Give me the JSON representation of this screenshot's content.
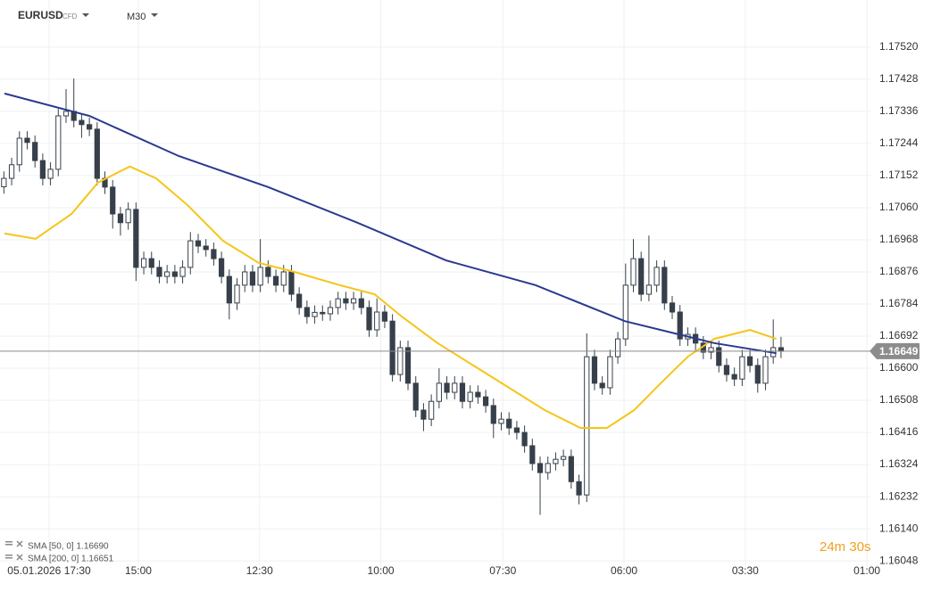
{
  "chart_data": {
    "type": "candlestick",
    "symbol": "EURUSD",
    "instrument": "CFD",
    "interval": "M30",
    "timer": "24m 30s",
    "xlim": [
      -0.5,
      111.5
    ],
    "xticks": [
      {
        "value": 5.82,
        "label": "05.01.2026 17:30"
      },
      {
        "value": 17.3,
        "label": "15:00"
      },
      {
        "value": 32.9,
        "label": "12:30"
      },
      {
        "value": 48.5,
        "label": "10:00"
      },
      {
        "value": 64.2,
        "label": "07:30"
      },
      {
        "value": 79.8,
        "label": "06:00"
      },
      {
        "value": 95.4,
        "label": "03:30"
      },
      {
        "value": 111.05,
        "label": "01:00"
      }
    ],
    "ylim": [
      1.16033,
      1.17655
    ],
    "yticks": [
      {
        "value": 1.1752,
        "label": "1.17520"
      },
      1.17428,
      1.17336,
      1.17244,
      1.17152,
      {
        "value": 1.1706,
        "label": "1.17060"
      },
      1.16968,
      1.16876,
      1.16784,
      1.16692,
      {
        "value": 1.166,
        "label": "1.16600"
      },
      1.16508,
      1.16416,
      1.16324,
      1.16232,
      {
        "value": 1.1614,
        "label": "1.16140"
      },
      1.16048
    ],
    "grid": true,
    "up_color": "#ffffff",
    "down_color": "#37404a",
    "wick_color": "#37404a",
    "price_line_color": "#8a8a8a",
    "open": [
      1.1712,
      1.17144,
      1.17183,
      1.17259,
      1.17247,
      1.17195,
      1.17144,
      1.1717,
      1.17323,
      1.17336,
      1.1731,
      1.17298,
      1.17285,
      1.17144,
      1.17119,
      1.17042,
      1.17017,
      1.17055,
      1.16889,
      1.16914,
      1.16889,
      1.16863,
      1.16876,
      1.16863,
      1.16889,
      1.16965,
      1.1695,
      1.1694,
      1.16914,
      1.16863,
      1.16787,
      1.16838,
      1.16876,
      1.16838,
      1.16889,
      1.16863,
      1.16838,
      1.16876,
      1.16812,
      1.16774,
      1.16748,
      1.1676,
      1.16756,
      1.16774,
      1.16799,
      1.16787,
      1.16799,
      1.16774,
      1.1671,
      1.16761,
      1.16735,
      1.16582,
      1.16659,
      1.16557,
      1.1648,
      1.16454,
      1.16505,
      1.16557,
      1.16531,
      1.16557,
      1.16505,
      1.16531,
      1.16518,
      1.16493,
      1.16442,
      1.16454,
      1.16429,
      1.16416,
      1.16378,
      1.16327,
      1.16301,
      1.16327,
      1.16339,
      1.16347,
      1.16275,
      1.16237,
      1.16633,
      1.16557,
      1.16544,
      1.16633,
      1.16684,
      1.16838,
      1.16914,
      1.16812,
      1.16838,
      1.16889,
      1.16787,
      1.16761,
      1.16684,
      1.16697,
      1.16672,
      1.16646,
      1.16659,
      1.16608,
      1.16582,
      1.16569,
      1.16633,
      1.16608,
      1.16557,
      1.16633,
      1.16659
    ],
    "high": [
      1.17164,
      1.17203,
      1.17279,
      1.17279,
      1.17267,
      1.17215,
      1.1719,
      1.17343,
      1.174,
      1.1743,
      1.1733,
      1.17318,
      1.17305,
      1.17164,
      1.17139,
      1.17062,
      1.17075,
      1.17075,
      1.16934,
      1.16934,
      1.16909,
      1.16896,
      1.16896,
      1.16909,
      1.1699,
      1.16985,
      1.1697,
      1.1696,
      1.16934,
      1.16883,
      1.16858,
      1.16896,
      1.16896,
      1.1697,
      1.16909,
      1.16883,
      1.16896,
      1.16896,
      1.16832,
      1.16794,
      1.1678,
      1.1678,
      1.16794,
      1.16819,
      1.16819,
      1.16819,
      1.16819,
      1.16794,
      1.168,
      1.16781,
      1.16755,
      1.16679,
      1.16679,
      1.16577,
      1.165,
      1.16525,
      1.166,
      1.16577,
      1.16577,
      1.16577,
      1.16551,
      1.16551,
      1.16538,
      1.16513,
      1.16474,
      1.16474,
      1.16449,
      1.16436,
      1.16398,
      1.16347,
      1.16347,
      1.16359,
      1.16367,
      1.16367,
      1.16295,
      1.167,
      1.16653,
      1.16577,
      1.16653,
      1.16704,
      1.169,
      1.1697,
      1.16934,
      1.1698,
      1.16909,
      1.16909,
      1.16807,
      1.16781,
      1.16717,
      1.16717,
      1.16692,
      1.16679,
      1.16679,
      1.16628,
      1.16602,
      1.16653,
      1.16653,
      1.16628,
      1.16653,
      1.1674,
      1.1669
    ],
    "low": [
      1.171,
      1.17124,
      1.17163,
      1.17227,
      1.17175,
      1.17124,
      1.17124,
      1.1715,
      1.17303,
      1.1729,
      1.1726,
      1.17265,
      1.17124,
      1.17099,
      1.17,
      1.1698,
      1.16997,
      1.1685,
      1.16869,
      1.16869,
      1.16843,
      1.16843,
      1.16843,
      1.16843,
      1.16869,
      1.1693,
      1.1692,
      1.16894,
      1.16843,
      1.1674,
      1.16767,
      1.16818,
      1.16818,
      1.16818,
      1.16843,
      1.16818,
      1.16818,
      1.16792,
      1.16754,
      1.16728,
      1.16728,
      1.16736,
      1.16736,
      1.16754,
      1.16767,
      1.16767,
      1.16754,
      1.1669,
      1.1669,
      1.16715,
      1.16562,
      1.16562,
      1.16537,
      1.1646,
      1.1642,
      1.16434,
      1.16485,
      1.16511,
      1.16511,
      1.16485,
      1.16485,
      1.16498,
      1.16473,
      1.164,
      1.16422,
      1.16409,
      1.16396,
      1.16358,
      1.16307,
      1.1618,
      1.16281,
      1.16307,
      1.16319,
      1.16255,
      1.1621,
      1.16217,
      1.16537,
      1.16524,
      1.16524,
      1.16613,
      1.16664,
      1.16818,
      1.16792,
      1.16792,
      1.16818,
      1.16767,
      1.16741,
      1.16664,
      1.16664,
      1.16652,
      1.16626,
      1.16626,
      1.16588,
      1.16562,
      1.16549,
      1.16549,
      1.16588,
      1.1653,
      1.16537,
      1.16613,
      1.16629
    ],
    "close": [
      1.17144,
      1.17183,
      1.17259,
      1.17247,
      1.17195,
      1.17144,
      1.1717,
      1.17323,
      1.17336,
      1.1731,
      1.17298,
      1.17285,
      1.17144,
      1.17119,
      1.17042,
      1.17017,
      1.17055,
      1.16889,
      1.16914,
      1.16889,
      1.16863,
      1.16876,
      1.16863,
      1.16889,
      1.16965,
      1.1695,
      1.1694,
      1.16914,
      1.16863,
      1.16787,
      1.16838,
      1.16876,
      1.16838,
      1.16889,
      1.16863,
      1.16838,
      1.16876,
      1.16812,
      1.16774,
      1.16748,
      1.1676,
      1.16756,
      1.16774,
      1.16799,
      1.16787,
      1.16799,
      1.16774,
      1.1671,
      1.16761,
      1.16735,
      1.16582,
      1.16659,
      1.16557,
      1.1648,
      1.16454,
      1.16505,
      1.16557,
      1.16531,
      1.16557,
      1.16505,
      1.16531,
      1.16518,
      1.16493,
      1.16442,
      1.16454,
      1.16429,
      1.16416,
      1.16378,
      1.16327,
      1.16301,
      1.16327,
      1.16339,
      1.16347,
      1.16275,
      1.16237,
      1.16633,
      1.16557,
      1.16544,
      1.16633,
      1.16684,
      1.16838,
      1.16914,
      1.16812,
      1.16838,
      1.16889,
      1.16787,
      1.16761,
      1.16684,
      1.16697,
      1.16672,
      1.16646,
      1.16659,
      1.16608,
      1.16582,
      1.16569,
      1.16633,
      1.16608,
      1.16557,
      1.16633,
      1.16659,
      1.16649
    ],
    "series": [
      {
        "name": "SMA [50, 0] 1.16690",
        "color": "#f5c518",
        "x": [
          0.07,
          4.1,
          8.7,
          12.1,
          16.2,
          19.6,
          23.6,
          28.2,
          32.8,
          37.4,
          43.2,
          47.7,
          51.2,
          55.8,
          60.4,
          65.0,
          69.6,
          74.2,
          77.6,
          81.1,
          84.5,
          88.0,
          91.4,
          96.0,
          99.4
        ],
        "values": [
          1.16986,
          1.16971,
          1.17042,
          1.17132,
          1.17178,
          1.17144,
          1.17068,
          1.16965,
          1.16902,
          1.16876,
          1.16838,
          1.16812,
          1.16748,
          1.16672,
          1.16608,
          1.16544,
          1.1648,
          1.16429,
          1.16429,
          1.1648,
          1.16557,
          1.16633,
          1.16684,
          1.1671,
          1.16684
        ]
      },
      {
        "name": "SMA [200, 0] 1.16651",
        "color": "#2b3990",
        "x": [
          0.07,
          11.0,
          22.5,
          34.0,
          45.5,
          56.9,
          68.4,
          79.9,
          91.4,
          99.4
        ],
        "values": [
          1.17387,
          1.17323,
          1.17208,
          1.17119,
          1.17017,
          1.16909,
          1.16838,
          1.16735,
          1.16672,
          1.16643
        ]
      }
    ]
  }
}
